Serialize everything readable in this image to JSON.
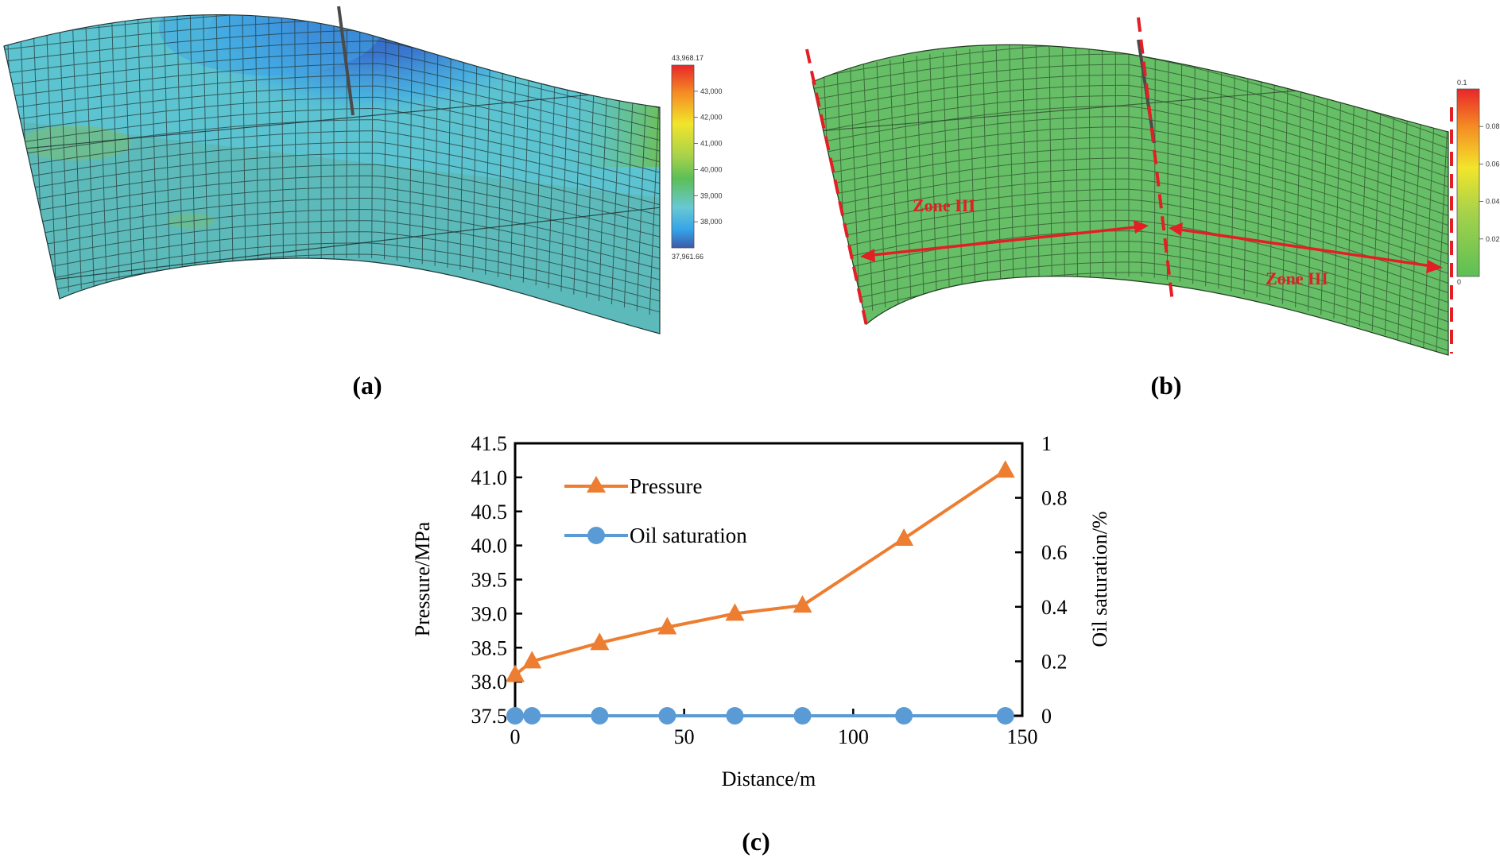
{
  "panel_a": {
    "label": "(a)",
    "colorbar": {
      "max_label": "43,968.17",
      "min_label": "37,961.66",
      "ticks": [
        "43,000",
        "42,000",
        "41,000",
        "40,000",
        "39,000",
        "38,000"
      ],
      "colors": [
        "#e8262a",
        "#f58b24",
        "#f2e52a",
        "#a6d24b",
        "#5cbf56",
        "#68c8d4",
        "#35a4e8",
        "#3c5aa8"
      ]
    }
  },
  "panel_b": {
    "label": "(b)",
    "zone_left_label": "Zone III",
    "zone_right_label": "Zone III",
    "colorbar": {
      "max_label": "0.1",
      "min_label": "0",
      "ticks": [
        "0.08",
        "0.06",
        "0.04",
        "0.02"
      ],
      "colors": [
        "#e8262a",
        "#f58b24",
        "#f2e52a",
        "#a6d24b",
        "#5cbf56"
      ]
    }
  },
  "panel_c": {
    "label": "(c)"
  },
  "chart_data": {
    "type": "line",
    "xlabel": "Distance/m",
    "ylabel": "Pressure/MPa",
    "y2label": "Oil saturation/%",
    "xlim": [
      0,
      150
    ],
    "ylim": [
      37.5,
      41.5
    ],
    "y2lim": [
      0,
      1
    ],
    "xticks": [
      "0",
      "50",
      "100",
      "150"
    ],
    "yticks": [
      "37.5",
      "38.0",
      "38.5",
      "39.0",
      "39.5",
      "40.0",
      "40.5",
      "41.0",
      "41.5"
    ],
    "y2ticks": [
      "0",
      "0.2",
      "0.4",
      "0.6",
      "0.8",
      "1"
    ],
    "legend_position": "top-left",
    "series": [
      {
        "name": "Pressure",
        "axis": "left",
        "color": "#ed7d31",
        "marker": "triangle",
        "x": [
          0,
          5,
          25,
          45,
          65,
          85,
          115,
          145
        ],
        "values": [
          38.1,
          38.3,
          38.57,
          38.8,
          39.0,
          39.12,
          40.1,
          41.1
        ]
      },
      {
        "name": "Oil saturation",
        "axis": "right",
        "color": "#5b9bd5",
        "marker": "circle",
        "x": [
          0,
          5,
          25,
          45,
          65,
          85,
          115,
          145
        ],
        "values": [
          0,
          0,
          0,
          0,
          0,
          0,
          0,
          0
        ]
      }
    ]
  }
}
